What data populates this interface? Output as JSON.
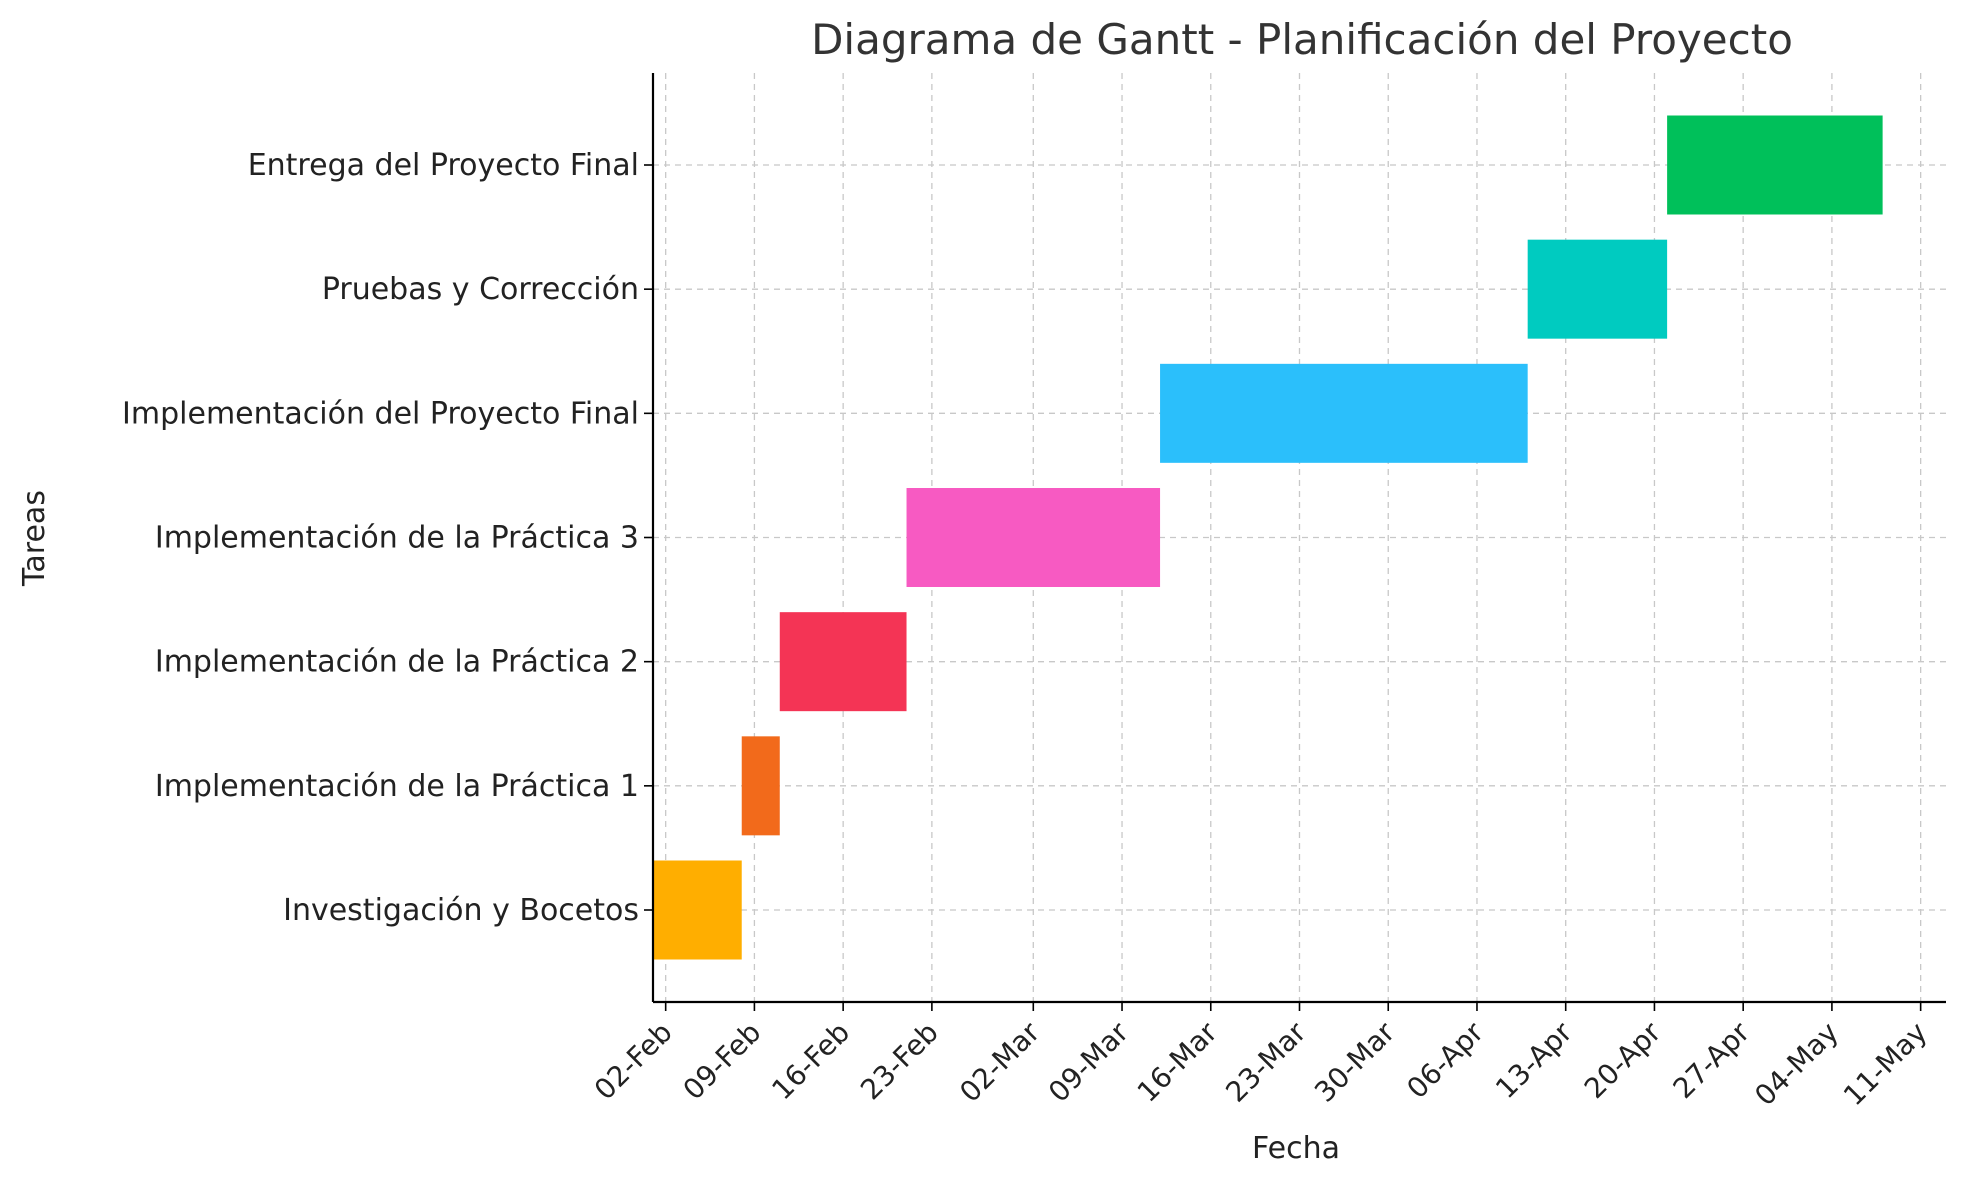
{
  "chart_data": {
    "type": "gantt",
    "title": "Diagrama de Gantt - Planificación del Proyecto",
    "xlabel": "Fecha",
    "ylabel": "Tareas",
    "x_axis": {
      "type": "date",
      "ticks": [
        "2024-02-02",
        "2024-02-09",
        "2024-02-16",
        "2024-02-23",
        "2024-03-02",
        "2024-03-09",
        "2024-03-16",
        "2024-03-23",
        "2024-03-30",
        "2024-04-06",
        "2024-04-13",
        "2024-04-20",
        "2024-04-27",
        "2024-05-04",
        "2024-05-11"
      ],
      "tick_labels": [
        "02-Feb",
        "09-Feb",
        "16-Feb",
        "23-Feb",
        "02-Mar",
        "09-Mar",
        "16-Mar",
        "23-Mar",
        "30-Mar",
        "06-Apr",
        "13-Apr",
        "20-Apr",
        "27-Apr",
        "04-May",
        "11-May"
      ],
      "range": [
        "2024-02-01",
        "2024-05-13"
      ]
    },
    "grid": true,
    "tasks": [
      {
        "name": "Investigación y Bocetos",
        "start": "2024-02-01",
        "end": "2024-02-07",
        "color": "#FFAE00"
      },
      {
        "name": "Implementación de la Práctica 1",
        "start": "2024-02-08",
        "end": "2024-02-10",
        "color": "#F26A1B"
      },
      {
        "name": "Implementación de la Práctica 2",
        "start": "2024-02-11",
        "end": "2024-02-20",
        "color": "#F43455"
      },
      {
        "name": "Implementación de la Práctica 3",
        "start": "2024-02-21",
        "end": "2024-03-11",
        "color": "#F75AC2"
      },
      {
        "name": "Implementación del Proyecto Final",
        "start": "2024-03-12",
        "end": "2024-04-09",
        "color": "#2BBFFB"
      },
      {
        "name": "Pruebas y Corrección",
        "start": "2024-04-10",
        "end": "2024-04-20",
        "color": "#00CBC0"
      },
      {
        "name": "Entrega del Proyecto Final",
        "start": "2024-04-21",
        "end": "2024-05-07",
        "color": "#00C05A"
      }
    ]
  }
}
